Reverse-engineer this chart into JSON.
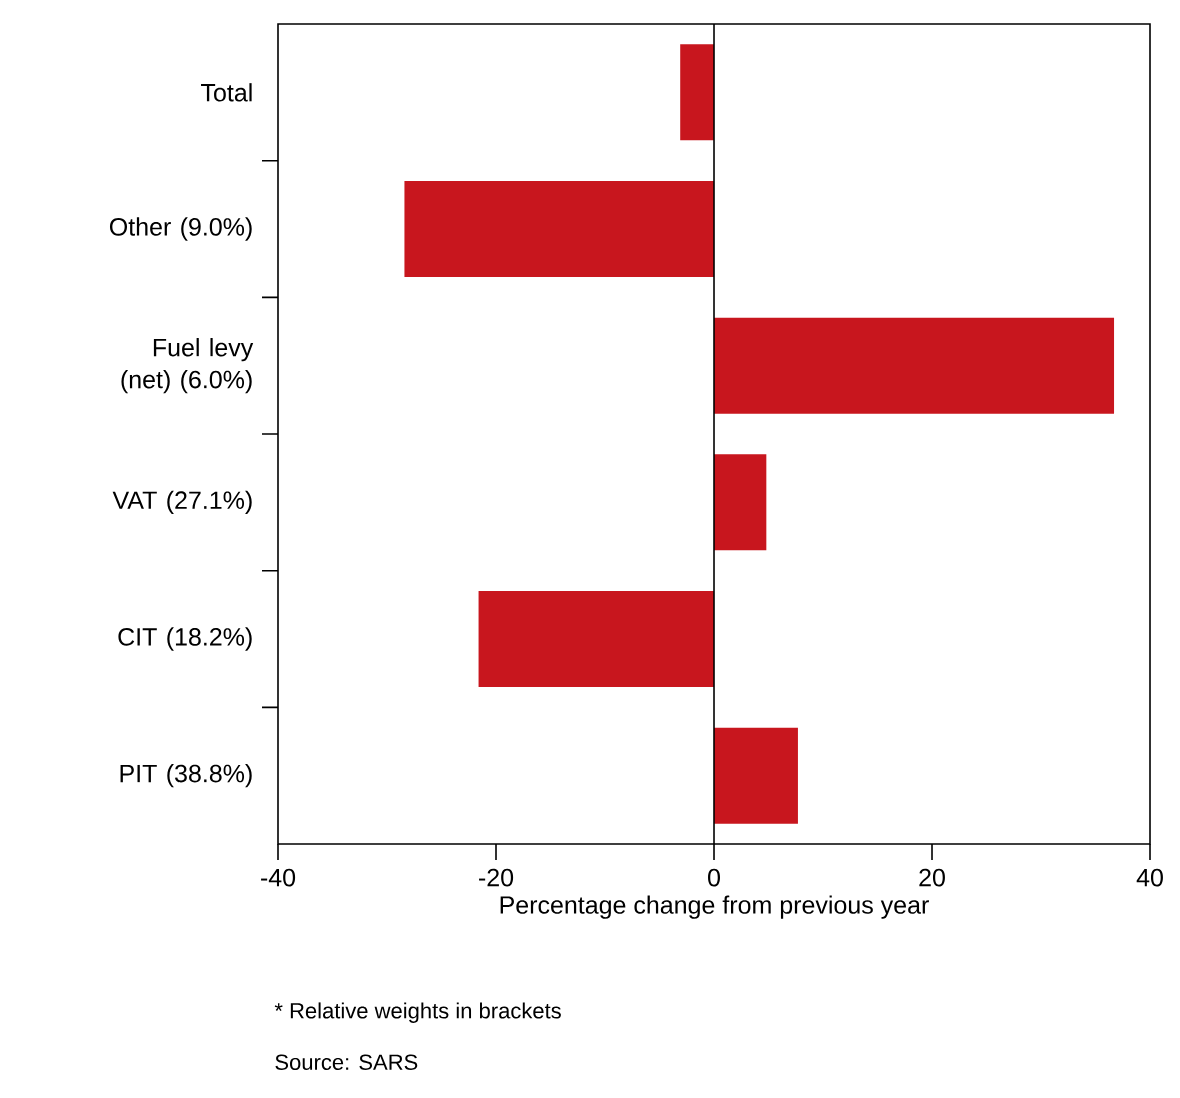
{
  "chart_data": {
    "type": "bar",
    "orientation": "horizontal",
    "categories": [
      "Total",
      "Other (9.0%)",
      "Fuel levy (net) (6.0%)",
      "VAT (27.1%)",
      "CIT (18.2%)",
      "PIT (38.8%)"
    ],
    "values": [
      -3.1,
      -28.4,
      36.7,
      4.8,
      -21.6,
      7.7
    ],
    "color": "#c8161e",
    "xlim": [
      -40,
      40
    ],
    "xticks": [
      -40,
      -20,
      0,
      20,
      40
    ],
    "xlabel": "Percentage change from previous year",
    "annotations": [
      "* Relative weights in brackets",
      "Source: SARS"
    ]
  }
}
